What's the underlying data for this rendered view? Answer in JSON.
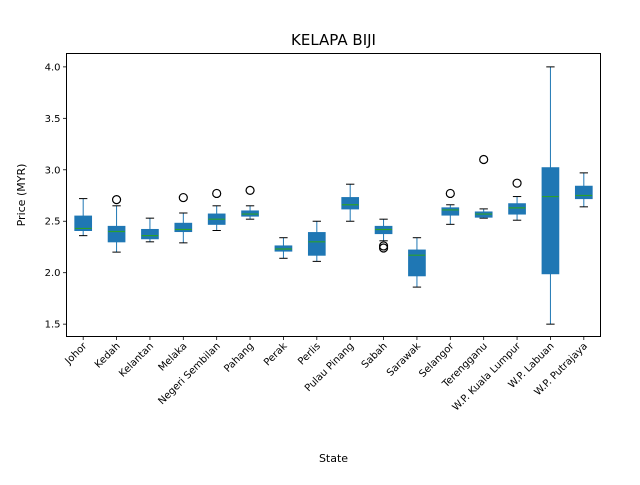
{
  "chart_data": {
    "type": "box",
    "title": "KELAPA BIJI",
    "xlabel": "State",
    "ylabel": "Price (MYR)",
    "ylim": [
      1.38,
      4.13
    ],
    "yticks": [
      "1.5",
      "2.0",
      "2.5",
      "3.0",
      "3.5",
      "4.0"
    ],
    "ytick_values": [
      1.5,
      2.0,
      2.5,
      3.0,
      3.5,
      4.0
    ],
    "grid": false,
    "box_color": "#1f77b4",
    "median_color": "#2ca02c",
    "categories": [
      "Johor",
      "Kedah",
      "Kelantan",
      "Melaka",
      "Negeri Sembilan",
      "Pahang",
      "Perak",
      "Perlis",
      "Pulau Pinang",
      "Sabah",
      "Sarawak",
      "Selangor",
      "Terengganu",
      "W.P. Kuala Lumpur",
      "W.P. Labuan",
      "W.P. Putrajaya"
    ],
    "boxes": [
      {
        "state": "Johor",
        "whislo": 2.36,
        "q1": 2.41,
        "med": 2.43,
        "q3": 2.55,
        "whishi": 2.72,
        "fliers": []
      },
      {
        "state": "Kedah",
        "whislo": 2.2,
        "q1": 2.3,
        "med": 2.4,
        "q3": 2.45,
        "whishi": 2.65,
        "fliers": [
          2.71
        ]
      },
      {
        "state": "Kelantan",
        "whislo": 2.3,
        "q1": 2.33,
        "med": 2.36,
        "q3": 2.42,
        "whishi": 2.53,
        "fliers": []
      },
      {
        "state": "Melaka",
        "whislo": 2.29,
        "q1": 2.4,
        "med": 2.42,
        "q3": 2.48,
        "whishi": 2.58,
        "fliers": [
          2.73
        ]
      },
      {
        "state": "Negeri Sembilan",
        "whislo": 2.41,
        "q1": 2.47,
        "med": 2.52,
        "q3": 2.57,
        "whishi": 2.65,
        "fliers": [
          2.77
        ]
      },
      {
        "state": "Pahang",
        "whislo": 2.52,
        "q1": 2.55,
        "med": 2.57,
        "q3": 2.6,
        "whishi": 2.65,
        "fliers": [
          2.8
        ]
      },
      {
        "state": "Perak",
        "whislo": 2.14,
        "q1": 2.21,
        "med": 2.23,
        "q3": 2.26,
        "whishi": 2.34,
        "fliers": []
      },
      {
        "state": "Perlis",
        "whislo": 2.11,
        "q1": 2.17,
        "med": 2.3,
        "q3": 2.39,
        "whishi": 2.5,
        "fliers": []
      },
      {
        "state": "Pulau Pinang",
        "whislo": 2.5,
        "q1": 2.62,
        "med": 2.66,
        "q3": 2.73,
        "whishi": 2.86,
        "fliers": []
      },
      {
        "state": "Sabah",
        "whislo": 2.31,
        "q1": 2.38,
        "med": 2.42,
        "q3": 2.45,
        "whishi": 2.52,
        "fliers": [
          2.24,
          2.26
        ]
      },
      {
        "state": "Sarawak",
        "whislo": 1.86,
        "q1": 1.97,
        "med": 2.17,
        "q3": 2.22,
        "whishi": 2.34,
        "fliers": []
      },
      {
        "state": "Selangor",
        "whislo": 2.47,
        "q1": 2.56,
        "med": 2.61,
        "q3": 2.63,
        "whishi": 2.66,
        "fliers": [
          2.77
        ]
      },
      {
        "state": "Terengganu",
        "whislo": 2.53,
        "q1": 2.54,
        "med": 2.57,
        "q3": 2.59,
        "whishi": 2.62,
        "fliers": [
          3.1
        ]
      },
      {
        "state": "W.P. Kuala Lumpur",
        "whislo": 2.51,
        "q1": 2.57,
        "med": 2.63,
        "q3": 2.67,
        "whishi": 2.74,
        "fliers": [
          2.87
        ]
      },
      {
        "state": "W.P. Labuan",
        "whislo": 1.5,
        "q1": 1.99,
        "med": 2.74,
        "q3": 3.02,
        "whishi": 4.0,
        "fliers": []
      },
      {
        "state": "W.P. Putrajaya",
        "whislo": 2.64,
        "q1": 2.72,
        "med": 2.75,
        "q3": 2.84,
        "whishi": 2.97,
        "fliers": []
      }
    ]
  }
}
